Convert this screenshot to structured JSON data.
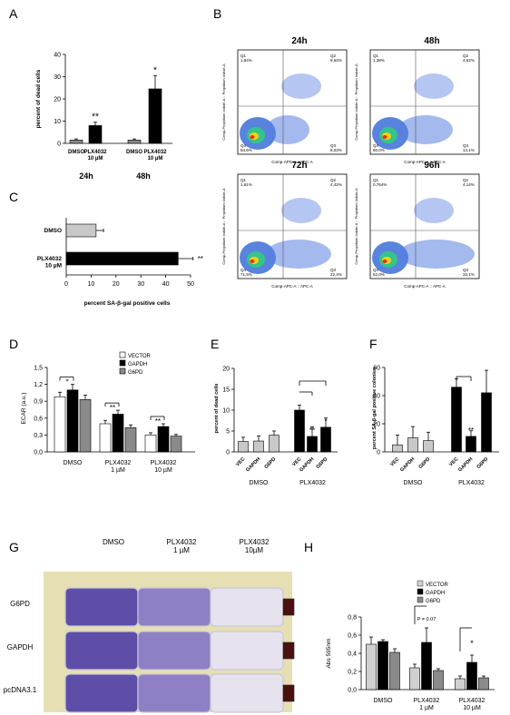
{
  "panels": {
    "A": {
      "letter": "A",
      "ylabel": "percent of dead cells",
      "yticks": [
        "0",
        "10",
        "20",
        "30",
        "40"
      ],
      "ymax": 40,
      "categories": [
        "DMSO",
        "PLX4032\n10 µM",
        "DMSO",
        "PLX4032\n10 µM"
      ],
      "values": [
        1.5,
        8,
        1.5,
        24.5
      ],
      "errors": [
        0.5,
        1.5,
        0.5,
        6
      ],
      "colors": [
        "#8a8a8a",
        "#000000",
        "#8a8a8a",
        "#000000"
      ],
      "stars": [
        "",
        "**",
        "",
        "*"
      ],
      "groups": [
        "24h",
        "48h"
      ]
    },
    "B": {
      "letter": "B",
      "plots": [
        {
          "title": "24h",
          "q1": "1,84%",
          "q2": "9,64%",
          "q3": "8,03%",
          "q4": "84,5%"
        },
        {
          "title": "48h",
          "q1": "1,38%",
          "q2": "4,52%",
          "q3": "14,1%",
          "q4": "80,0%"
        },
        {
          "title": "72h",
          "q1": "1,61%",
          "q2": "4,42%",
          "q3": "22,4%",
          "q4": "71,5%"
        },
        {
          "title": "96h",
          "q1": "0,764%",
          "q2": "4,14%",
          "q3": "33,1%",
          "q4": "62,0%"
        }
      ],
      "xlabel": "Comp-APC-A :: APC-A",
      "ylabel": "Comp-Propidium Iodide-A :: Propidium Iodide-A"
    },
    "C": {
      "letter": "C",
      "xlabel": "percent SA-β-gal positive cells",
      "categories": [
        "DMSO",
        "PLX4032\n10 µM"
      ],
      "values": [
        12,
        45
      ],
      "errors": [
        3,
        6
      ],
      "colors": [
        "#c8c8c8",
        "#000000"
      ],
      "xticks": [
        "0",
        "10",
        "20",
        "30",
        "40",
        "50"
      ],
      "xmax": 50,
      "stars": [
        "",
        "**"
      ]
    },
    "D": {
      "letter": "D",
      "ylabel": "ECAR (a.u.)",
      "yticks": [
        "0,0",
        "0,3",
        "0,6",
        "0,9",
        "1,2",
        "1,5"
      ],
      "ymax": 1.5,
      "legend": [
        "VECTOR",
        "GAPDH",
        "G6PD"
      ],
      "legend_colors": [
        "#ffffff",
        "#000000",
        "#8a8a8a"
      ],
      "groups": [
        "DMSO",
        "PLX4032\n1 µM",
        "PLX4032\n10 µM"
      ],
      "values": [
        [
          0.98,
          1.1,
          0.93
        ],
        [
          0.5,
          0.67,
          0.43
        ],
        [
          0.3,
          0.45,
          0.28
        ]
      ],
      "errors": [
        [
          0.08,
          0.1,
          0.08
        ],
        [
          0.06,
          0.07,
          0.05
        ],
        [
          0.04,
          0.05,
          0.03
        ]
      ],
      "stars": [
        "*",
        "**",
        "**"
      ]
    },
    "E": {
      "letter": "E",
      "ylabel": "percent of dead cells",
      "yticks": [
        "0",
        "5",
        "10",
        "15",
        "20"
      ],
      "ymax": 20,
      "bar_labels": [
        "VEC",
        "GAPDH",
        "G6PD",
        "VEC",
        "GAPDH",
        "G6PD"
      ],
      "values": [
        2.5,
        2.6,
        4,
        10,
        3.7,
        5.9
      ],
      "errors": [
        1,
        1.2,
        1,
        1.2,
        2.3,
        2.2
      ],
      "colors": [
        "#c8c8c8",
        "#c8c8c8",
        "#c8c8c8",
        "#000000",
        "#000000",
        "#000000"
      ],
      "groups": [
        "DMSO",
        "PLX4032"
      ],
      "stars": [
        "",
        "",
        "",
        "",
        "**",
        "*"
      ]
    },
    "F": {
      "letter": "F",
      "ylabel": "percent SA-β-gal positive colonies",
      "yticks": [
        "0",
        "20",
        "40",
        "60"
      ],
      "ymax": 60,
      "bar_labels": [
        "VEC",
        "GAPDH",
        "G6PD",
        "VEC",
        "GAPDH",
        "G6PD"
      ],
      "values": [
        5,
        10,
        8,
        46,
        11,
        42
      ],
      "errors": [
        7,
        8,
        6,
        6,
        4,
        16
      ],
      "colors": [
        "#c8c8c8",
        "#c8c8c8",
        "#c8c8c8",
        "#000000",
        "#000000",
        "#000000"
      ],
      "groups": [
        "DMSO",
        "PLX4032"
      ],
      "stars": [
        "",
        "",
        "",
        "",
        "**",
        ""
      ]
    },
    "G": {
      "letter": "G",
      "col_labels": [
        "DMSO",
        "PLX4032\n1 µM",
        "PLX4032\n10µM"
      ],
      "row_labels": [
        "G6PD",
        "GAPDH",
        "pcDNA3.1"
      ]
    },
    "H": {
      "letter": "H",
      "ylabel": "Abs 595nm",
      "yticks": [
        "0,0",
        "0,2",
        "0,4",
        "0,6",
        "0,8"
      ],
      "ymax": 0.8,
      "legend": [
        "VECTOR",
        "GAPDH",
        "G6PD"
      ],
      "legend_colors": [
        "#d0d0d0",
        "#000000",
        "#8a8a8a"
      ],
      "groups": [
        "DMSO",
        "PLX4032\n1 µM",
        "PLX4032\n10 µM"
      ],
      "values": [
        [
          0.5,
          0.53,
          0.41
        ],
        [
          0.24,
          0.52,
          0.21
        ],
        [
          0.12,
          0.3,
          0.13
        ]
      ],
      "errors": [
        [
          0.08,
          0.02,
          0.04
        ],
        [
          0.04,
          0.16,
          0.02
        ],
        [
          0.03,
          0.08,
          0.02
        ]
      ],
      "annotations": [
        "",
        "P = 0.07",
        "*"
      ]
    }
  },
  "chart_data": [
    {
      "type": "bar",
      "panel": "A",
      "categories": [
        "DMSO 24h",
        "PLX4032 10 µM 24h",
        "DMSO 48h",
        "PLX4032 10 µM 48h"
      ],
      "values": [
        1.5,
        8,
        1.5,
        24.5
      ],
      "ylabel": "percent of dead cells",
      "ylim": [
        0,
        40
      ]
    },
    {
      "type": "scatter",
      "panel": "B",
      "series": [
        {
          "name": "24h",
          "values": [
            1.84,
            9.64,
            8.03,
            84.5
          ]
        },
        {
          "name": "48h",
          "values": [
            1.38,
            4.52,
            14.1,
            80.0
          ]
        },
        {
          "name": "72h",
          "values": [
            1.61,
            4.42,
            22.4,
            71.5
          ]
        },
        {
          "name": "96h",
          "values": [
            0.764,
            4.14,
            33.1,
            62.0
          ]
        }
      ],
      "categories": [
        "Q1",
        "Q2",
        "Q3",
        "Q4"
      ]
    },
    {
      "type": "bar",
      "panel": "C",
      "categories": [
        "DMSO",
        "PLX4032 10 µM"
      ],
      "values": [
        12,
        45
      ],
      "xlabel": "percent SA-β-gal positive cells",
      "xlim": [
        0,
        50
      ]
    },
    {
      "type": "bar",
      "panel": "D",
      "categories": [
        "DMSO",
        "PLX4032 1 µM",
        "PLX4032 10 µM"
      ],
      "series": [
        {
          "name": "VECTOR",
          "values": [
            0.98,
            0.5,
            0.3
          ]
        },
        {
          "name": "GAPDH",
          "values": [
            1.1,
            0.67,
            0.45
          ]
        },
        {
          "name": "G6PD",
          "values": [
            0.93,
            0.43,
            0.28
          ]
        }
      ],
      "ylabel": "ECAR (a.u.)",
      "ylim": [
        0,
        1.5
      ]
    },
    {
      "type": "bar",
      "panel": "E",
      "categories": [
        "VEC",
        "GAPDH",
        "G6PD",
        "VEC",
        "GAPDH",
        "G6PD"
      ],
      "values": [
        2.5,
        2.6,
        4,
        10,
        3.7,
        5.9
      ],
      "ylabel": "percent of dead cells",
      "ylim": [
        0,
        20
      ]
    },
    {
      "type": "bar",
      "panel": "F",
      "categories": [
        "VEC",
        "GAPDH",
        "G6PD",
        "VEC",
        "GAPDH",
        "G6PD"
      ],
      "values": [
        5,
        10,
        8,
        46,
        11,
        42
      ],
      "ylabel": "percent SA-β-gal positive colonies",
      "ylim": [
        0,
        60
      ]
    },
    {
      "type": "bar",
      "panel": "H",
      "categories": [
        "DMSO",
        "PLX4032 1 µM",
        "PLX4032 10 µM"
      ],
      "series": [
        {
          "name": "VECTOR",
          "values": [
            0.5,
            0.24,
            0.12
          ]
        },
        {
          "name": "GAPDH",
          "values": [
            0.53,
            0.52,
            0.3
          ]
        },
        {
          "name": "G6PD",
          "values": [
            0.41,
            0.21,
            0.13
          ]
        }
      ],
      "ylabel": "Abs 595nm",
      "ylim": [
        0,
        0.8
      ]
    }
  ]
}
